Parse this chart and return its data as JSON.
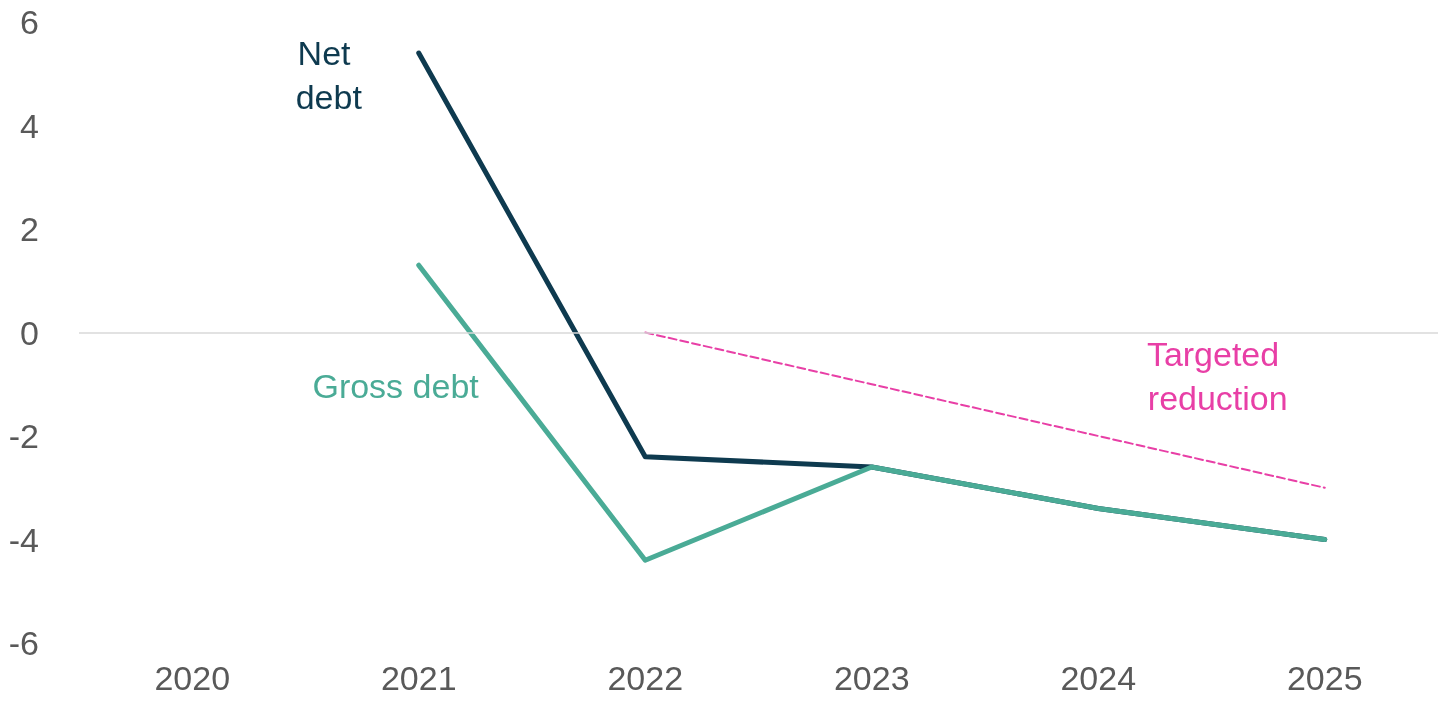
{
  "chart_data": {
    "type": "line",
    "categories": [
      "2020",
      "2021",
      "2022",
      "2023",
      "2024",
      "2025"
    ],
    "series": [
      {
        "name": "Net debt",
        "color": "#0e3a4f",
        "values": [
          null,
          5.4,
          -2.4,
          -2.6,
          -3.4,
          -4.0
        ]
      },
      {
        "name": "Gross debt",
        "color": "#4aab96",
        "values": [
          null,
          1.3,
          -4.4,
          -2.6,
          -3.4,
          -4.0
        ]
      },
      {
        "name": "Targeted reduction",
        "color": "#e83fa6",
        "line_style": "dashed",
        "values": [
          null,
          null,
          0,
          -1,
          -2,
          -3
        ]
      }
    ],
    "ylim": [
      -6,
      6
    ],
    "yticks": [
      -6,
      -4,
      -2,
      0,
      2,
      4,
      6
    ],
    "ref_lines": [
      {
        "axis": "y",
        "value": 0,
        "color": "#d9d9d9"
      }
    ],
    "grid": false,
    "legend": false,
    "marker": "none",
    "line_style": "solid"
  }
}
